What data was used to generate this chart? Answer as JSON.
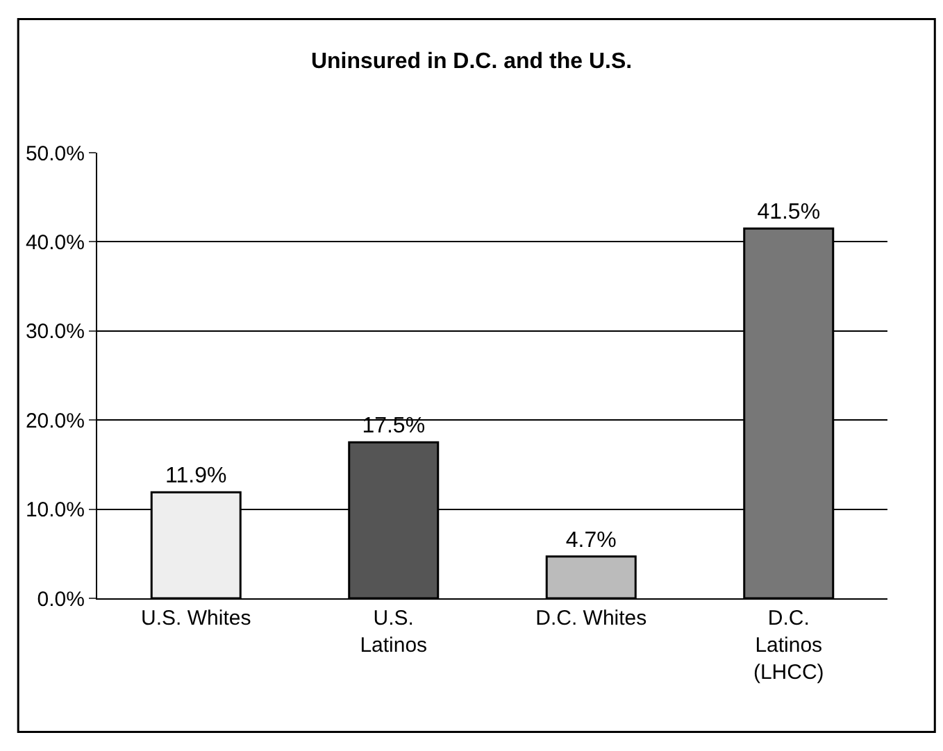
{
  "chart_data": {
    "type": "bar",
    "title": "Uninsured in D.C. and the U.S.",
    "categories": [
      "U.S. Whites",
      "U.S. Latinos",
      "D.C. Whites",
      "D.C. Latinos (LHCC)"
    ],
    "values": [
      11.9,
      17.5,
      4.7,
      41.5
    ],
    "value_labels": [
      "11.9%",
      "17.5%",
      "4.7%",
      "41.5%"
    ],
    "colors": [
      "#eeeeee",
      "#555555",
      "#bbbbbb",
      "#777777"
    ],
    "ylim": [
      0,
      50
    ],
    "yticks": [
      {
        "value": 0,
        "label": "0.0%"
      },
      {
        "value": 10,
        "label": "10.0%"
      },
      {
        "value": 20,
        "label": "20.0%"
      },
      {
        "value": 30,
        "label": "30.0%"
      },
      {
        "value": 40,
        "label": "40.0%"
      },
      {
        "value": 50,
        "label": "50.0%"
      }
    ],
    "grid": "y",
    "legend": false
  }
}
